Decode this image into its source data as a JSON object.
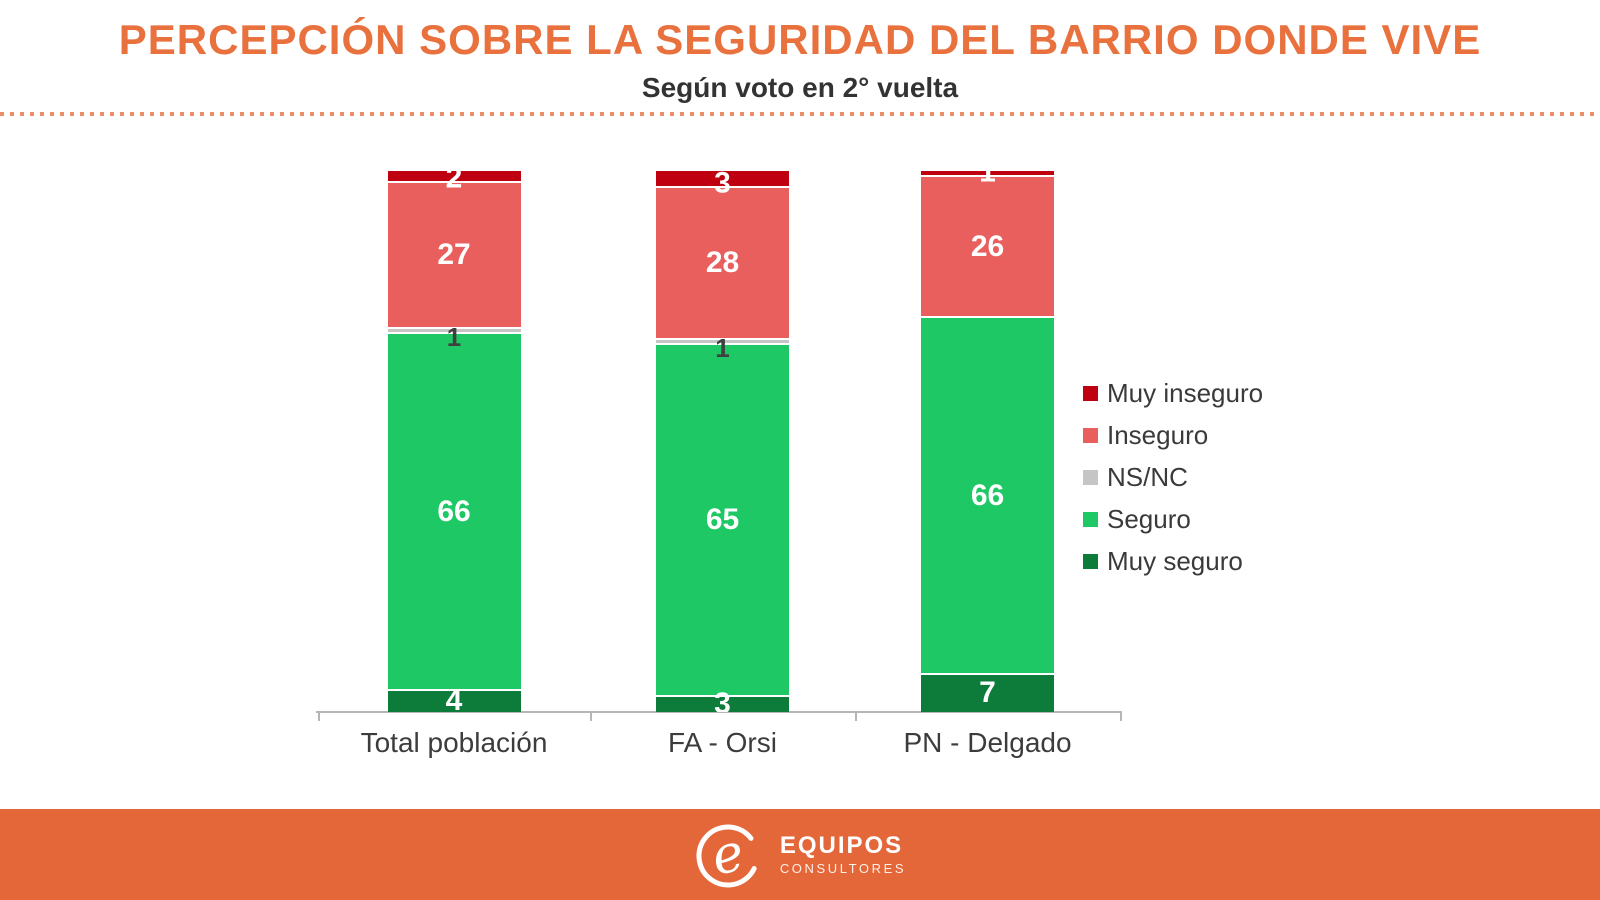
{
  "header": {
    "title": "PERCEPCIÓN SOBRE LA SEGURIDAD DEL BARRIO DONDE VIVE",
    "subtitle": "Según voto en 2° vuelta"
  },
  "colors": {
    "title_orange": "#E8713E",
    "footer_orange": "#E4673A",
    "dotted_line": "#EA8D68",
    "axis": "#B5B5B5",
    "text_dark": "#3C3C3C",
    "label_on_gray": "#404040",
    "label_on_color": "#FFFFFF"
  },
  "chart_data": {
    "type": "bar",
    "stacked": true,
    "title": "PERCEPCIÓN SOBRE LA SEGURIDAD DEL BARRIO DONDE VIVE",
    "subtitle": "Según voto en 2° vuelta",
    "categories": [
      "Total población",
      "FA - Orsi",
      "PN - Delgado"
    ],
    "series": [
      {
        "name": "Muy inseguro",
        "color": "#BE0010",
        "values": [
          2,
          3,
          1
        ]
      },
      {
        "name": "Inseguro",
        "color": "#E95F5E",
        "values": [
          27,
          28,
          26
        ]
      },
      {
        "name": "NS/NC",
        "color": "#C5C5C5",
        "values": [
          1,
          1,
          0
        ]
      },
      {
        "name": "Seguro",
        "color": "#1EC864",
        "values": [
          66,
          65,
          66
        ]
      },
      {
        "name": "Muy seguro",
        "color": "#0D7C3B",
        "values": [
          4,
          3,
          7
        ]
      }
    ],
    "ylim": [
      0,
      100
    ],
    "grid": false,
    "legend_position": "right",
    "value_labels": true
  },
  "footer": {
    "logo_letter": "e",
    "brand": "EQUIPOS",
    "brand_sub": "CONSULTORES"
  }
}
